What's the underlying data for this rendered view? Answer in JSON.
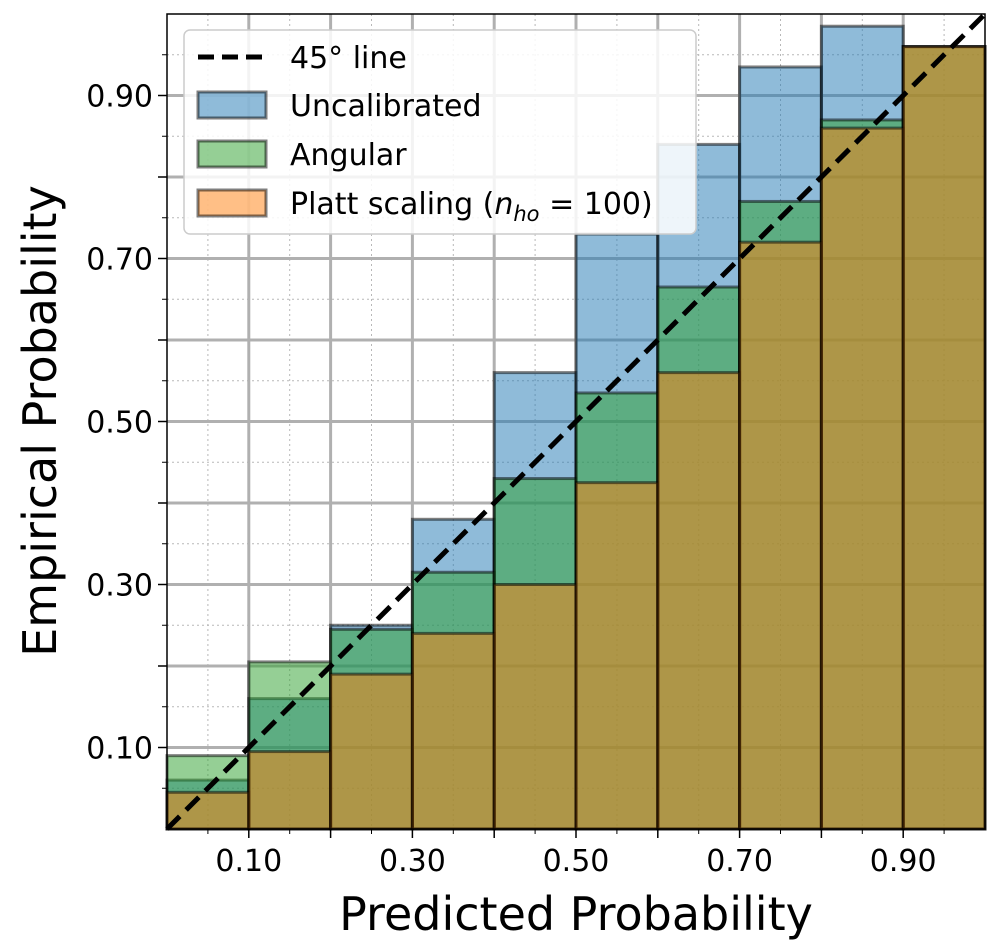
{
  "chart_data": {
    "type": "bar",
    "xlabel": "Predicted Probability",
    "ylabel": "Empirical Probability",
    "xlim": [
      0,
      1
    ],
    "ylim": [
      0,
      1
    ],
    "bin_edges": [
      0,
      0.1,
      0.2,
      0.3,
      0.4,
      0.5,
      0.6,
      0.7,
      0.8,
      0.9,
      1.0
    ],
    "x_ticks": [
      0.1,
      0.3,
      0.5,
      0.7,
      0.9
    ],
    "x_tick_labels": [
      "0.10",
      "0.30",
      "0.50",
      "0.70",
      "0.90"
    ],
    "y_ticks": [
      0.1,
      0.3,
      0.5,
      0.7,
      0.9
    ],
    "y_tick_labels": [
      "0.10",
      "0.30",
      "0.50",
      "0.70",
      "0.90"
    ],
    "grid": true,
    "legend_position": "top-left",
    "series": [
      {
        "name": "Uncalibrated",
        "color": "#1f77b4",
        "values": [
          0.06,
          0.16,
          0.25,
          0.38,
          0.56,
          0.73,
          0.84,
          0.935,
          0.985,
          0.96
        ]
      },
      {
        "name": "Angular",
        "color": "#2ca02c",
        "values": [
          0.09,
          0.205,
          0.245,
          0.315,
          0.43,
          0.535,
          0.665,
          0.77,
          0.87,
          0.96
        ]
      },
      {
        "name": "Platt scaling",
        "color": "#ff7f0e",
        "values": [
          0.045,
          0.095,
          0.19,
          0.24,
          0.3,
          0.425,
          0.56,
          0.72,
          0.86,
          0.96
        ]
      }
    ],
    "reference_line": {
      "name": "45° line",
      "from": [
        0,
        0
      ],
      "to": [
        1,
        1
      ],
      "style": "dashed",
      "color": "#000000"
    }
  },
  "legend": {
    "items": [
      {
        "label": "45° line"
      },
      {
        "label": "Uncalibrated"
      },
      {
        "label": "Angular"
      },
      {
        "label": "Platt scaling (",
        "math_var": "n",
        "math_sub": "ho",
        "math_rest": " = 100)"
      }
    ]
  }
}
